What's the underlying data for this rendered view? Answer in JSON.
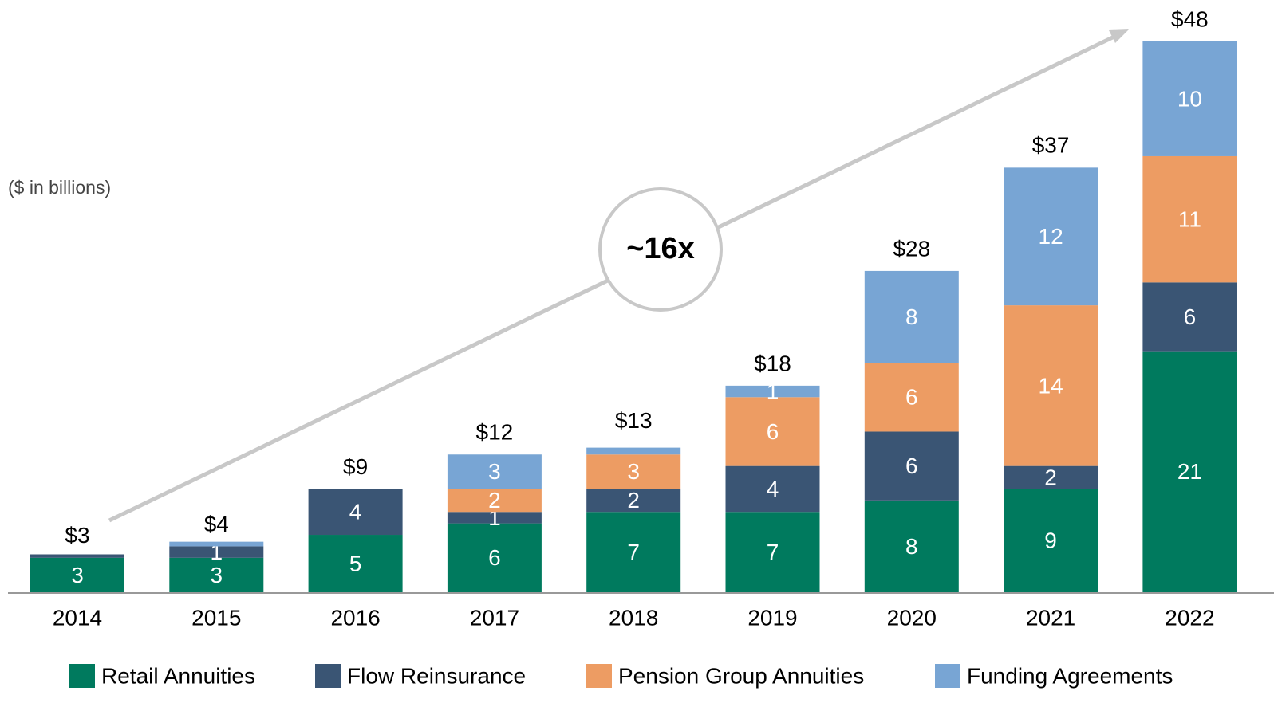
{
  "chart_data": {
    "type": "stacked_bar",
    "subtitle": "($ in billions)",
    "annotation": "~16x",
    "categories": [
      "2014",
      "2015",
      "2016",
      "2017",
      "2018",
      "2019",
      "2020",
      "2021",
      "2022"
    ],
    "series": [
      {
        "name": "Retail Annuities",
        "color": "#007a5e",
        "values": [
          3,
          3,
          5,
          6,
          7,
          7,
          8,
          9,
          21
        ]
      },
      {
        "name": "Flow Reinsurance",
        "color": "#3a5574",
        "values": [
          0.3,
          1,
          4,
          1,
          2,
          4,
          6,
          2,
          6
        ]
      },
      {
        "name": "Pension Group Annuities",
        "color": "#ed9c63",
        "values": [
          0,
          0,
          0,
          2,
          3,
          6,
          6,
          14,
          11
        ]
      },
      {
        "name": "Funding Agreements",
        "color": "#78a5d4",
        "values": [
          0,
          0.4,
          0,
          3,
          0.6,
          1,
          8,
          12,
          10
        ]
      }
    ],
    "totals": [
      3,
      4,
      9,
      12,
      13,
      18,
      28,
      37,
      48
    ],
    "total_labels": [
      "$3",
      "$4",
      "$9",
      "$12",
      "$13",
      "$18",
      "$28",
      "$37",
      "$48"
    ],
    "ylim": [
      0,
      48
    ]
  }
}
